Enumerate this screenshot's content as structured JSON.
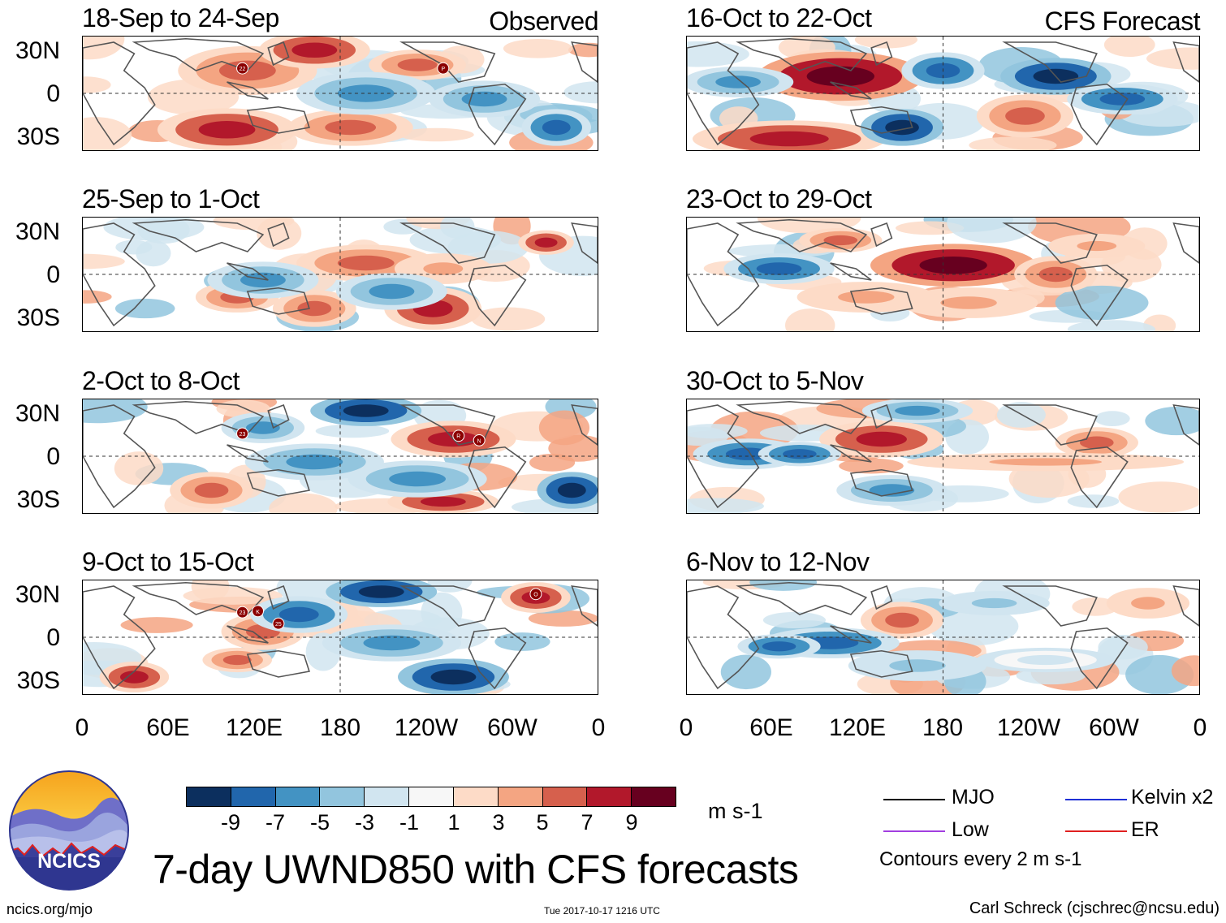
{
  "panels": {
    "p1": {
      "period": "18-Sep to 24-Sep",
      "tag": "Observed"
    },
    "p2": {
      "period": "25-Sep to 1-Oct"
    },
    "p3": {
      "period": "2-Oct to 8-Oct"
    },
    "p4": {
      "period": "9-Oct to 15-Oct"
    },
    "p5": {
      "period": "16-Oct to 22-Oct",
      "tag": "CFS Forecast"
    },
    "p6": {
      "period": "23-Oct to 29-Oct"
    },
    "p7": {
      "period": "30-Oct to 5-Nov"
    },
    "p8": {
      "period": "6-Nov to 12-Nov"
    }
  },
  "axes": {
    "lat_labels": [
      "30N",
      "0",
      "30S"
    ],
    "lon_labels": [
      "0",
      "60E",
      "120E",
      "180",
      "120W",
      "60W",
      "0"
    ]
  },
  "storms": {
    "p1": [
      "22",
      "P"
    ],
    "p3": [
      "23",
      "R",
      "N"
    ],
    "p4": [
      "23",
      "K",
      "25",
      "O"
    ]
  },
  "colorbar": {
    "ticks": [
      "-9",
      "-7",
      "-5",
      "-3",
      "-1",
      "1",
      "3",
      "5",
      "7",
      "9"
    ],
    "units": "m s-1",
    "colors": [
      "#0c2f5e",
      "#2166ac",
      "#4393c3",
      "#92c5de",
      "#d1e5f0",
      "#f7f7f7",
      "#fddbc7",
      "#f4a582",
      "#d6604d",
      "#b2182b",
      "#67001f"
    ]
  },
  "legend": {
    "mjo": {
      "label": "MJO",
      "color": "#000000"
    },
    "kelvin": {
      "label": "Kelvin x2",
      "color": "#1f2fd6"
    },
    "low": {
      "label": "Low",
      "color": "#a23ee0"
    },
    "er": {
      "label": "ER",
      "color": "#e02020"
    },
    "contour_note": "Contours every 2 m s-1"
  },
  "logo_text": "NCICS",
  "title": "7-day UWND850 with CFS forecasts",
  "footer": {
    "left": "ncics.org/mjo",
    "middle": "Tue 2017-10-17 1216 UTC",
    "right": "Carl Schreck (cjschrec@ncsu.edu)"
  }
}
